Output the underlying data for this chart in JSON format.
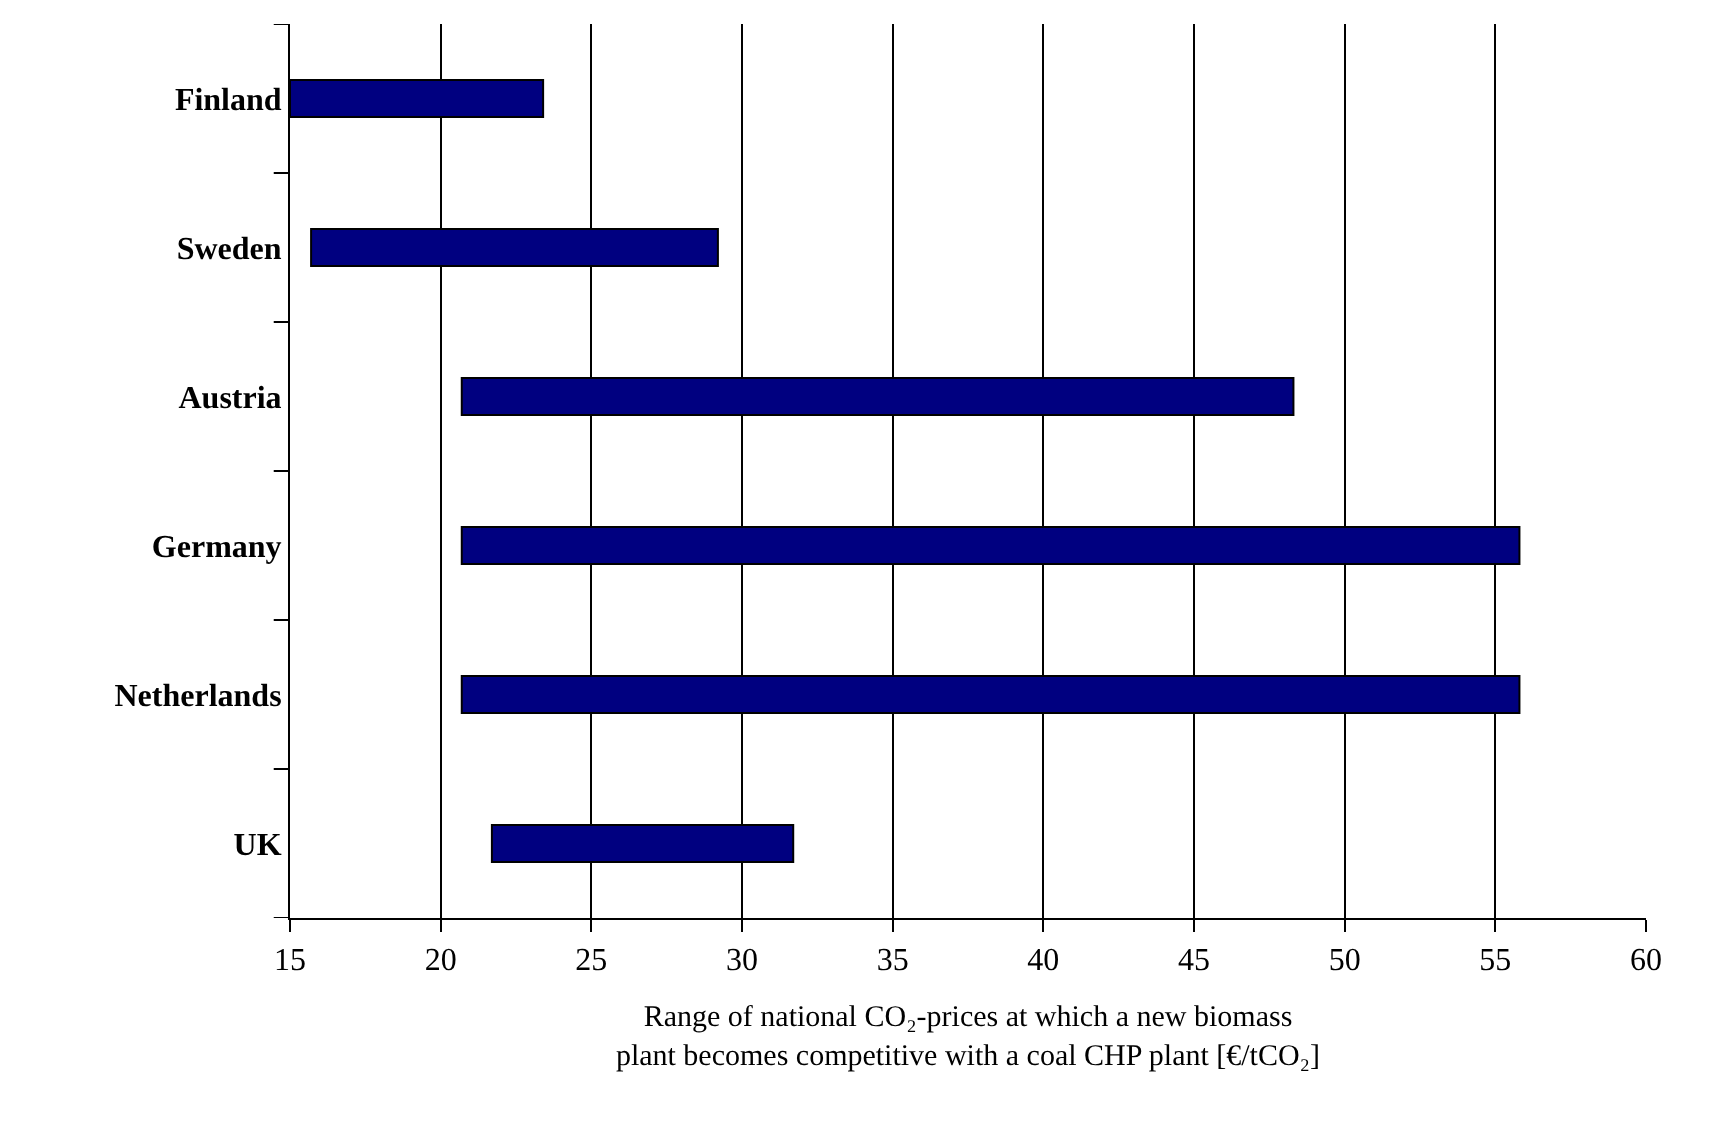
{
  "chart_data": {
    "type": "bar",
    "orientation": "horizontal",
    "categories": [
      "Finland",
      "Sweden",
      "Austria",
      "Germany",
      "Netherlands",
      "UK"
    ],
    "base": [
      15,
      15.7,
      20.7,
      20.7,
      20.7,
      21.7
    ],
    "values": [
      8.4,
      13.5,
      27.6,
      35.1,
      35.1,
      10.0
    ],
    "color": "#000080",
    "xlabel": "Range of national CO₂-prices at which a new biomass\nplant becomes competitive with a coal CHP plant [€/tCO₂]",
    "xlim": [
      15,
      60
    ],
    "xticks": [
      15,
      20,
      25,
      30,
      35,
      40,
      45,
      50,
      55,
      60
    ],
    "grid": "x",
    "legend": false
  }
}
